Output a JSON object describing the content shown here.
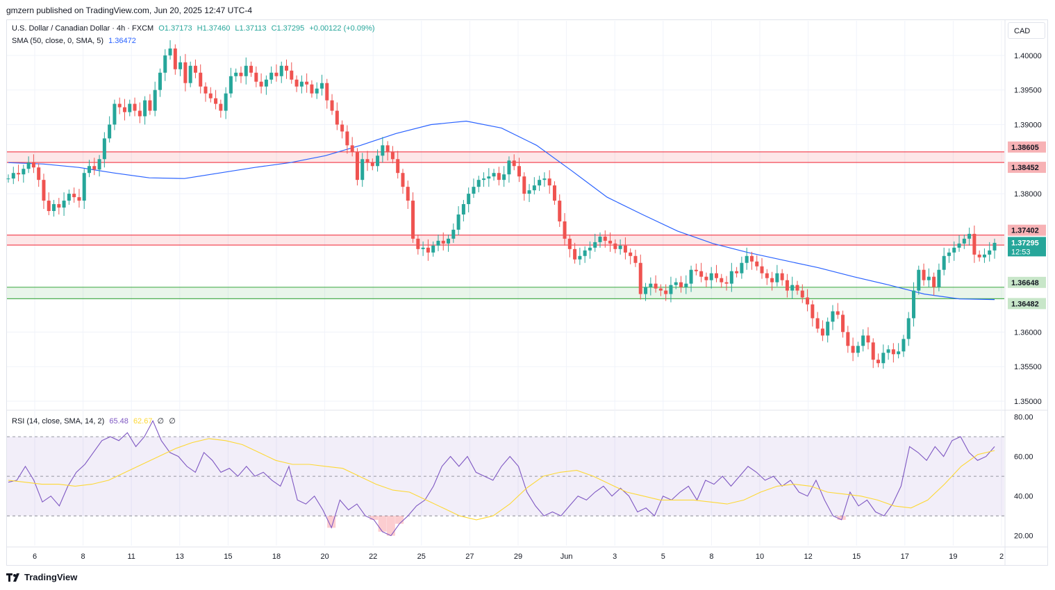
{
  "header": {
    "text": "gmzern published on TradingView.com, Jun 20, 2025 12:47 UTC-4"
  },
  "legend": {
    "symbol": "U.S. Dollar / Canadian Dollar · 4h · FXCM",
    "o": "O1.37173",
    "h": "H1.37460",
    "l": "L1.37113",
    "c": "C1.37295",
    "chg": "+0.00122 (+0.09%)",
    "sma_label": "SMA (50, close, 0, SMA, 5)",
    "sma_value": "1.36472",
    "rsi_label": "RSI (14, close, SMA, 14, 2)",
    "rsi_value": "65.48",
    "rsi_sma_value": "62.67",
    "rsi_extra1": "∅",
    "rsi_extra2": "∅"
  },
  "currency": "CAD",
  "footer": {
    "brand": "TradingView"
  },
  "colors": {
    "up": "#26a69a",
    "down": "#ef5350",
    "sma": "#2962ff",
    "rsi": "#7e57c2",
    "rsi_sma": "#fdd835"
  },
  "chart_data": [
    {
      "type": "candlestick",
      "title": "U.S. Dollar / Canadian Dollar · 4h · FXCM",
      "y_ticks": [
        1.4,
        1.395,
        1.39,
        1.38,
        1.36,
        1.355,
        1.35
      ],
      "y_tick_labels": [
        "1.40000",
        "1.39500",
        "1.39000",
        "1.38000",
        "1.36000",
        "1.35500",
        "1.35000"
      ],
      "ylim": [
        1.349,
        1.405
      ],
      "x_tick_labels": [
        "6",
        "8",
        "11",
        "13",
        "15",
        "18",
        "20",
        "22",
        "25",
        "27",
        "29",
        "Jun",
        "3",
        "5",
        "8",
        "10",
        "12",
        "15",
        "17",
        "19",
        "2"
      ],
      "zones": [
        {
          "low": 1.38452,
          "high": 1.38605,
          "color": "#f23645",
          "low_label": "1.38452",
          "high_label": "1.38605"
        },
        {
          "low": 1.37258,
          "high": 1.37402,
          "color": "#f23645",
          "low_label": "1.37258",
          "high_label": "1.37402"
        },
        {
          "low": 1.36482,
          "high": 1.36648,
          "color": "#4caf50",
          "low_label": "1.36482",
          "high_label": "1.36648"
        }
      ],
      "last_price": {
        "value": 1.37295,
        "label": "1.37295",
        "countdown": "12:53"
      },
      "candles_close_path": [
        1.3822,
        1.383,
        1.3828,
        1.3836,
        1.3845,
        1.3838,
        1.382,
        1.379,
        1.3775,
        1.3785,
        1.378,
        1.379,
        1.38,
        1.3795,
        1.379,
        1.383,
        1.384,
        1.3835,
        1.385,
        1.388,
        1.39,
        1.393,
        1.3925,
        1.3918,
        1.393,
        1.392,
        1.3912,
        1.3935,
        1.392,
        1.395,
        1.3975,
        1.4,
        1.401,
        1.398,
        1.399,
        1.396,
        1.3985,
        1.3975,
        1.3955,
        1.3945,
        1.3938,
        1.393,
        1.392,
        1.3945,
        1.397,
        1.3975,
        1.397,
        1.3985,
        1.3975,
        1.3962,
        1.3955,
        1.3965,
        1.3975,
        1.397,
        1.3985,
        1.3978,
        1.3965,
        1.3955,
        1.3962,
        1.3958,
        1.3945,
        1.3952,
        1.396,
        1.3935,
        1.392,
        1.39,
        1.389,
        1.387,
        1.386,
        1.382,
        1.385,
        1.3845,
        1.384,
        1.3855,
        1.387,
        1.386,
        1.385,
        1.383,
        1.381,
        1.379,
        1.3735,
        1.372,
        1.3722,
        1.3715,
        1.3725,
        1.3732,
        1.3728,
        1.3735,
        1.3748,
        1.377,
        1.3785,
        1.38,
        1.381,
        1.382,
        1.3822,
        1.3825,
        1.383,
        1.382,
        1.3828,
        1.3848,
        1.384,
        1.3825,
        1.38,
        1.3805,
        1.3812,
        1.382,
        1.3822,
        1.3812,
        1.379,
        1.376,
        1.3735,
        1.372,
        1.3705,
        1.371,
        1.3718,
        1.3722,
        1.373,
        1.3738,
        1.3732,
        1.3728,
        1.372,
        1.3725,
        1.3715,
        1.371,
        1.37,
        1.3655,
        1.3665,
        1.367,
        1.3663,
        1.366,
        1.3655,
        1.3668,
        1.3672,
        1.3665,
        1.367,
        1.369,
        1.3688,
        1.368,
        1.3675,
        1.3685,
        1.3678,
        1.3672,
        1.367,
        1.3688,
        1.3685,
        1.37,
        1.371,
        1.3702,
        1.3695,
        1.3685,
        1.3678,
        1.3672,
        1.3685,
        1.3675,
        1.366,
        1.3668,
        1.366,
        1.365,
        1.364,
        1.362,
        1.3605,
        1.3595,
        1.3615,
        1.363,
        1.3625,
        1.36,
        1.358,
        1.357,
        1.358,
        1.3595,
        1.3585,
        1.356,
        1.3555,
        1.357,
        1.3575,
        1.3568,
        1.3572,
        1.359,
        1.362,
        1.366,
        1.369,
        1.3675,
        1.368,
        1.3665,
        1.369,
        1.371,
        1.3715,
        1.3722,
        1.3728,
        1.3735,
        1.3742,
        1.3712,
        1.3708,
        1.3712,
        1.3718,
        1.3729
      ],
      "sma_path": [
        1.3845,
        1.3843,
        1.3838,
        1.383,
        1.3823,
        1.3822,
        1.383,
        1.3838,
        1.3845,
        1.3855,
        1.387,
        1.3887,
        1.39,
        1.3905,
        1.3895,
        1.387,
        1.3833,
        1.3795,
        1.377,
        1.3746,
        1.3728,
        1.3715,
        1.3704,
        1.3693,
        1.368,
        1.3668,
        1.3655,
        1.3648,
        1.3647
      ],
      "sma_name": "SMA (50, close, 0, SMA, 5)"
    },
    {
      "type": "line",
      "title": "RSI (14, close, SMA, 14, 2)",
      "y_ticks": [
        80,
        60,
        40,
        20
      ],
      "y_tick_labels": [
        "80.00",
        "60.00",
        "40.00",
        "20.00"
      ],
      "ylim": [
        15,
        83
      ],
      "bands": {
        "upper": 70,
        "middle": 50,
        "lower": 30
      },
      "series": [
        {
          "name": "RSI (14, close, SMA, 14, 2)",
          "values": [
            47,
            48,
            55,
            48,
            37,
            40,
            35,
            45,
            52,
            56,
            62,
            68,
            70,
            68,
            72,
            65,
            70,
            78,
            68,
            62,
            60,
            55,
            52,
            62,
            58,
            52,
            54,
            50,
            55,
            50,
            52,
            48,
            45,
            55,
            38,
            36,
            40,
            33,
            24,
            38,
            33,
            36,
            30,
            28,
            22,
            20,
            26,
            30,
            35,
            38,
            45,
            55,
            60,
            55,
            60,
            52,
            50,
            48,
            55,
            60,
            55,
            42,
            35,
            30,
            32,
            30,
            35,
            40,
            38,
            42,
            45,
            40,
            44,
            40,
            32,
            34,
            30,
            40,
            38,
            42,
            45,
            38,
            48,
            46,
            50,
            45,
            50,
            55,
            52,
            48,
            50,
            45,
            48,
            42,
            40,
            48,
            38,
            30,
            28,
            42,
            35,
            38,
            32,
            30,
            36,
            45,
            65,
            62,
            58,
            65,
            60,
            68,
            70,
            62,
            58,
            60,
            65
          ]
        },
        {
          "name": "SMA",
          "values": [
            48,
            47,
            46,
            46,
            45,
            46,
            48,
            52,
            56,
            60,
            64,
            67,
            69,
            68,
            66,
            62,
            58,
            56,
            56,
            55,
            54,
            50,
            46,
            43,
            42,
            38,
            34,
            30,
            28,
            30,
            36,
            44,
            50,
            52,
            53,
            50,
            46,
            42,
            40,
            38,
            38,
            38,
            37,
            36,
            38,
            42,
            45,
            46,
            45,
            42,
            41,
            40,
            38,
            35,
            34,
            38,
            46,
            55,
            61,
            63
          ]
        }
      ]
    }
  ]
}
